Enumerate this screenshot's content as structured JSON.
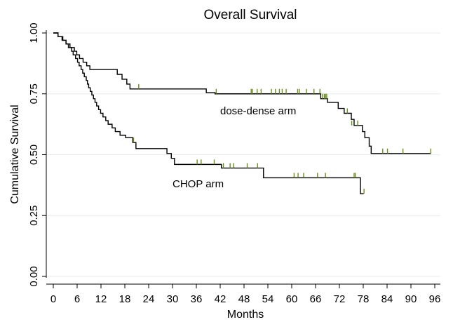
{
  "chart_data": {
    "type": "line",
    "subtype": "kaplan-meier step",
    "title": "Overall Survival",
    "xlabel": "Months",
    "ylabel": "Cumulative Survival",
    "xlim": [
      0,
      97
    ],
    "ylim": [
      0,
      1
    ],
    "x_ticks": [
      "0",
      "6",
      "12",
      "18",
      "24",
      "30",
      "36",
      "42",
      "48",
      "54",
      "60",
      "66",
      "72",
      "78",
      "84",
      "90",
      "96"
    ],
    "y_ticks": [
      "0.00",
      "0.25",
      "0.50",
      "0.75",
      "1.00"
    ],
    "grid": true,
    "censor_color": "#6b8e23",
    "series": [
      {
        "name": "dose-dense arm",
        "label_position_x": 42,
        "label_position_y": 0.68,
        "steps": [
          [
            0,
            1.0
          ],
          [
            1.2,
            0.985
          ],
          [
            2.2,
            0.97
          ],
          [
            3.2,
            0.955
          ],
          [
            4.2,
            0.94
          ],
          [
            5.3,
            0.925
          ],
          [
            5.9,
            0.91
          ],
          [
            6.6,
            0.895
          ],
          [
            7.5,
            0.88
          ],
          [
            8.4,
            0.865
          ],
          [
            9.2,
            0.85
          ],
          [
            16.1,
            0.83
          ],
          [
            17.3,
            0.81
          ],
          [
            18.5,
            0.79
          ],
          [
            19.3,
            0.77
          ],
          [
            38.5,
            0.755
          ],
          [
            40.7,
            0.75
          ],
          [
            67.3,
            0.73
          ],
          [
            69.0,
            0.715
          ],
          [
            71.7,
            0.69
          ],
          [
            73.2,
            0.67
          ],
          [
            75.0,
            0.645
          ],
          [
            75.7,
            0.62
          ],
          [
            77.8,
            0.595
          ],
          [
            78.4,
            0.57
          ],
          [
            79.5,
            0.535
          ],
          [
            80.0,
            0.505
          ],
          [
            95,
            0.505
          ]
        ],
        "censored": [
          [
            21.5,
            0.77
          ],
          [
            41,
            0.75
          ],
          [
            49.8,
            0.75
          ],
          [
            50.1,
            0.75
          ],
          [
            51.3,
            0.75
          ],
          [
            52.3,
            0.75
          ],
          [
            54.9,
            0.75
          ],
          [
            55.9,
            0.75
          ],
          [
            56.9,
            0.75
          ],
          [
            57.6,
            0.75
          ],
          [
            58.6,
            0.75
          ],
          [
            61.5,
            0.75
          ],
          [
            61.9,
            0.75
          ],
          [
            63.7,
            0.75
          ],
          [
            65.6,
            0.75
          ],
          [
            67.1,
            0.75
          ],
          [
            67.7,
            0.73
          ],
          [
            68.2,
            0.73
          ],
          [
            68.5,
            0.73
          ],
          [
            68.8,
            0.73
          ],
          [
            74.0,
            0.67
          ],
          [
            75.1,
            0.62
          ],
          [
            76.6,
            0.62
          ],
          [
            82.9,
            0.505
          ],
          [
            84.1,
            0.505
          ],
          [
            88.0,
            0.505
          ],
          [
            95.0,
            0.505
          ]
        ]
      },
      {
        "name": "CHOP arm",
        "label_position_x": 30,
        "label_position_y": 0.38,
        "steps": [
          [
            0,
            1.0
          ],
          [
            1.2,
            0.985
          ],
          [
            2.4,
            0.97
          ],
          [
            3.2,
            0.955
          ],
          [
            3.8,
            0.94
          ],
          [
            4.6,
            0.925
          ],
          [
            5.0,
            0.91
          ],
          [
            5.6,
            0.895
          ],
          [
            6.1,
            0.88
          ],
          [
            6.5,
            0.865
          ],
          [
            7.0,
            0.85
          ],
          [
            7.4,
            0.835
          ],
          [
            7.8,
            0.82
          ],
          [
            8.3,
            0.805
          ],
          [
            8.6,
            0.79
          ],
          [
            8.9,
            0.775
          ],
          [
            9.3,
            0.76
          ],
          [
            9.7,
            0.745
          ],
          [
            10.1,
            0.73
          ],
          [
            10.5,
            0.715
          ],
          [
            10.9,
            0.7
          ],
          [
            11.4,
            0.685
          ],
          [
            11.9,
            0.67
          ],
          [
            12.5,
            0.655
          ],
          [
            13.2,
            0.64
          ],
          [
            13.8,
            0.625
          ],
          [
            14.8,
            0.61
          ],
          [
            15.6,
            0.595
          ],
          [
            16.8,
            0.58
          ],
          [
            18.2,
            0.57
          ],
          [
            20.0,
            0.55
          ],
          [
            20.8,
            0.525
          ],
          [
            28.6,
            0.505
          ],
          [
            29.7,
            0.485
          ],
          [
            30.5,
            0.46
          ],
          [
            42.3,
            0.445
          ],
          [
            52.9,
            0.405
          ],
          [
            77.3,
            0.34
          ],
          [
            78.1,
            0.34
          ]
        ],
        "censored": [
          [
            20.2,
            0.55
          ],
          [
            36.2,
            0.46
          ],
          [
            37.2,
            0.46
          ],
          [
            40.5,
            0.46
          ],
          [
            42.8,
            0.445
          ],
          [
            44.5,
            0.445
          ],
          [
            45.4,
            0.445
          ],
          [
            48.8,
            0.445
          ],
          [
            51.4,
            0.445
          ],
          [
            60.6,
            0.405
          ],
          [
            61.6,
            0.405
          ],
          [
            63.0,
            0.405
          ],
          [
            66.5,
            0.405
          ],
          [
            68.5,
            0.405
          ],
          [
            75.7,
            0.405
          ],
          [
            76.0,
            0.405
          ],
          [
            78.2,
            0.34
          ]
        ]
      }
    ]
  }
}
